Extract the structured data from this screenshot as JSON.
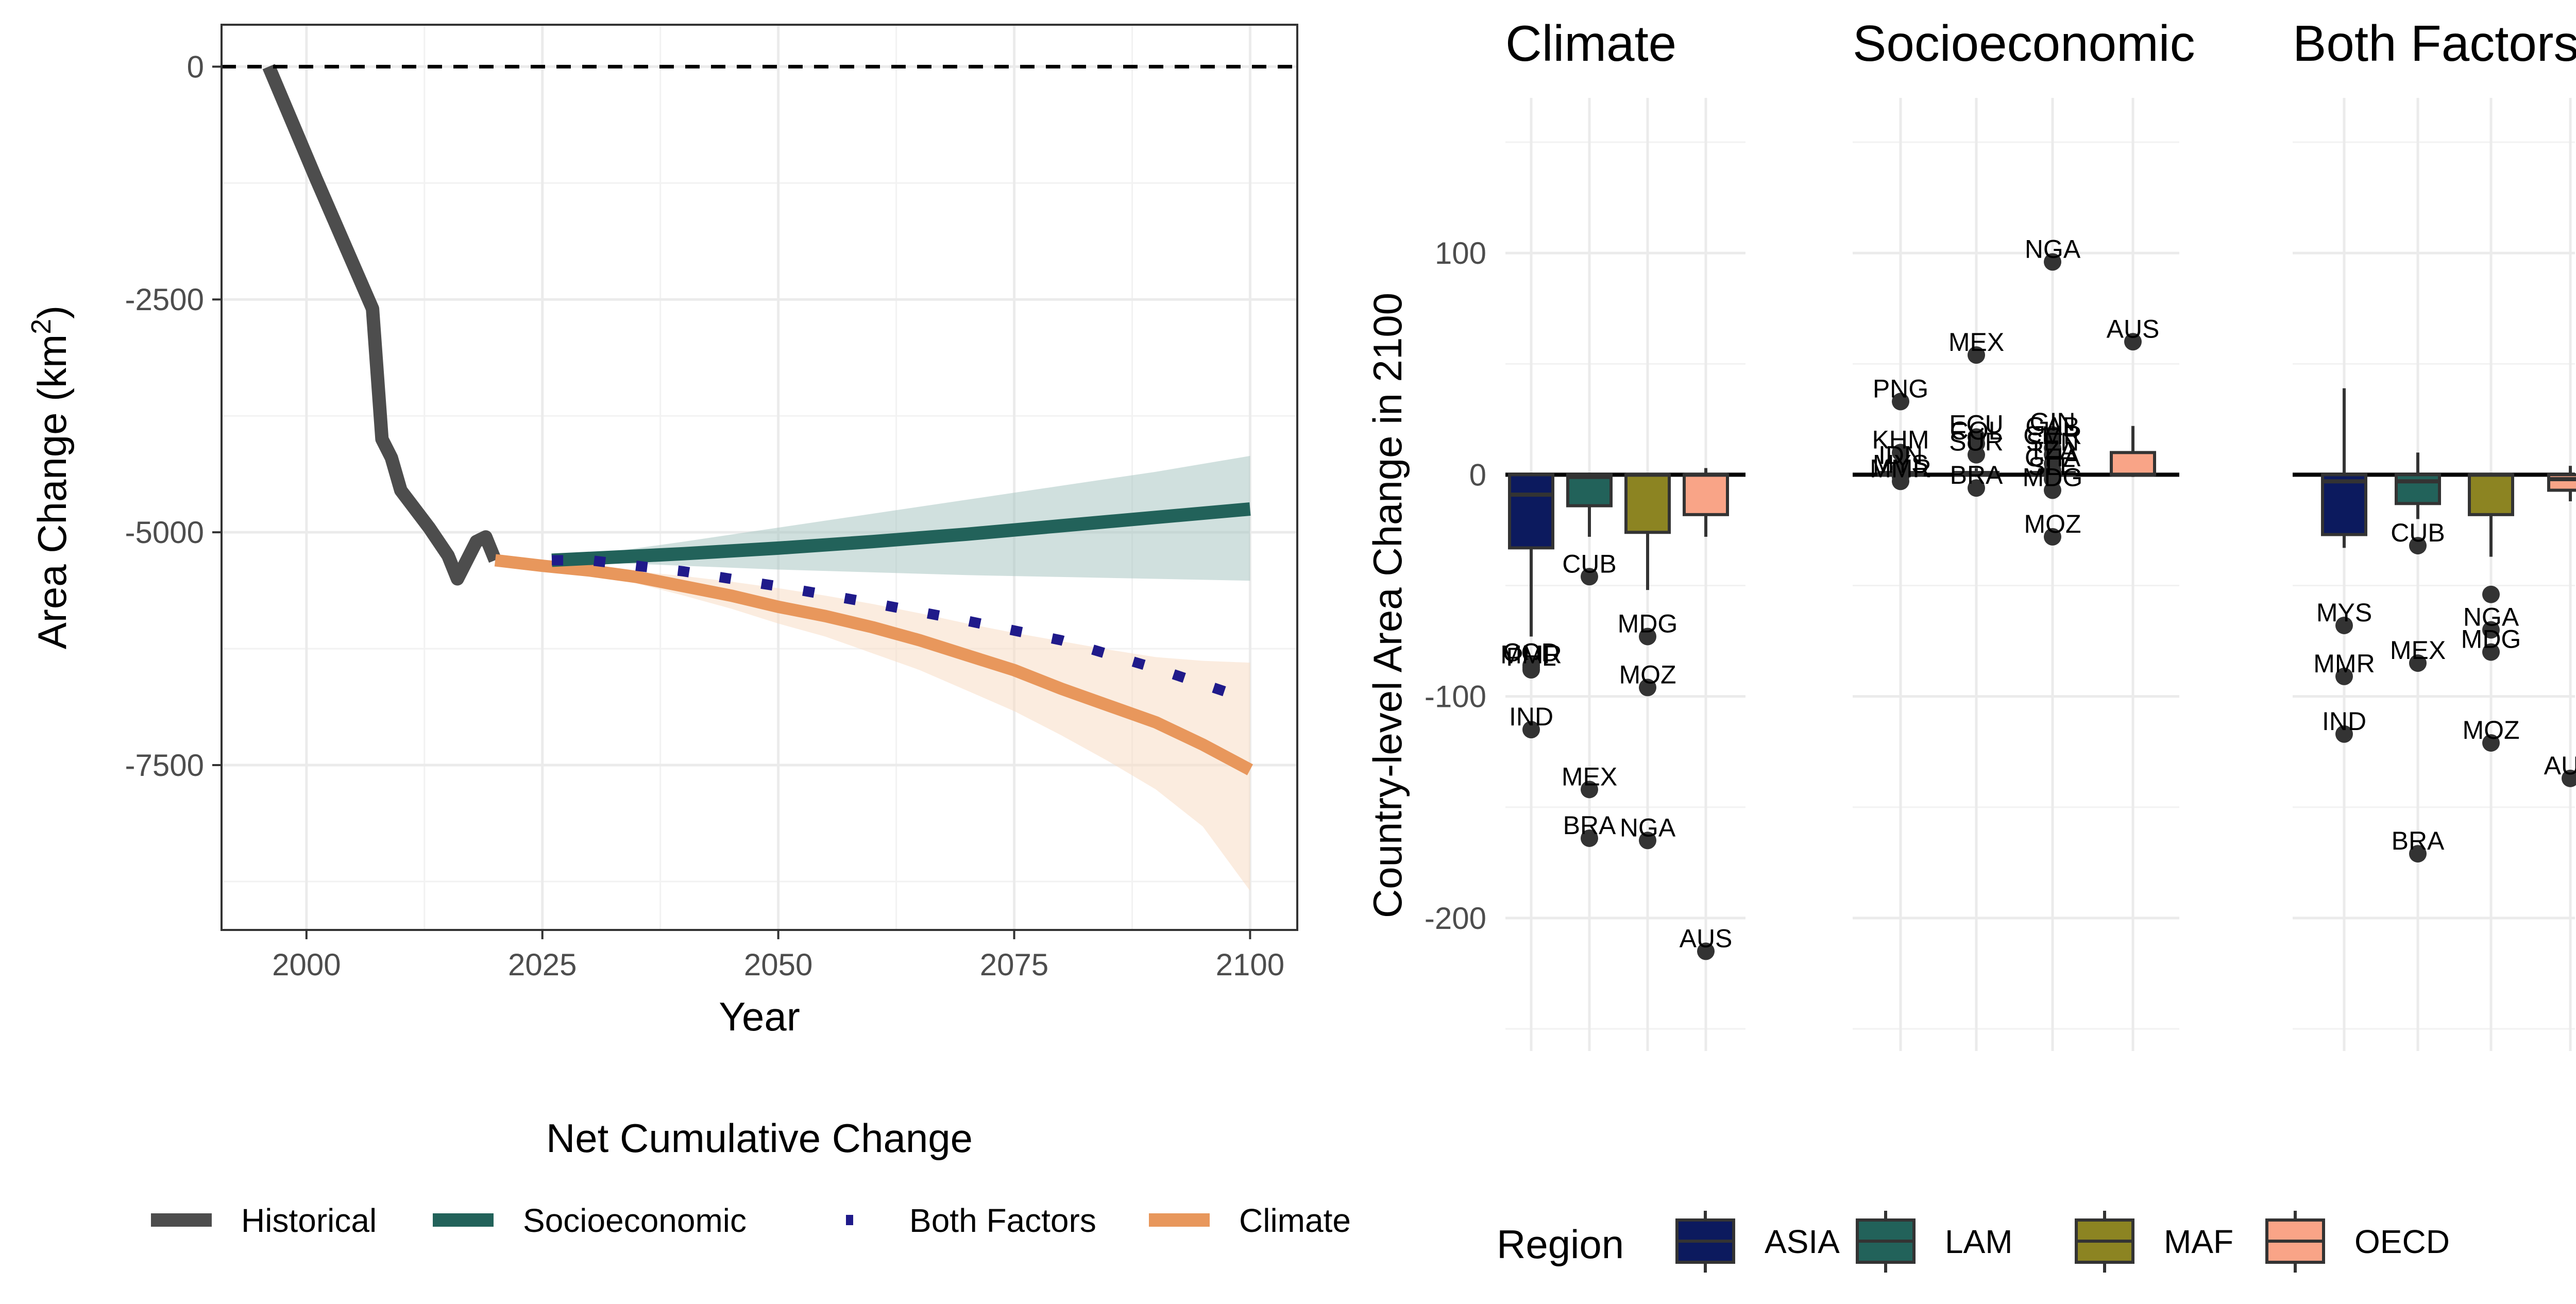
{
  "colors": {
    "historical": "#4d4d4d",
    "socioeconomic": "#22625a",
    "both": "#1f1a8a",
    "climate": "#e8975c",
    "socioeconomic_band": "#aac7c3",
    "climate_band": "#f8dcc5",
    "ASIA": "#0c1a5e",
    "LAM": "#22625a",
    "MAF": "#8c8422",
    "OECD": "#f9a487"
  },
  "chart_data": [
    {
      "type": "line",
      "xlabel": "Year",
      "ylabel_main": "Area Change (km",
      "ylabel_sup": "2",
      "ylabel_end": ")",
      "xlim": [
        1991,
        2105
      ],
      "ylim": [
        -9270,
        450
      ],
      "xticks": [
        2000,
        2025,
        2050,
        2075,
        2100
      ],
      "yticks": [
        0,
        -2500,
        -5000,
        -7500
      ],
      "ytick_labels": [
        "0",
        "-2500",
        "-5000",
        "-7500"
      ],
      "legend_title": "Net Cumulative Change",
      "series": [
        {
          "name": "Historical",
          "key": "historical",
          "x": [
            1996,
            2001,
            2004,
            2007,
            2008,
            2009,
            2010,
            2013,
            2015,
            2016,
            2017,
            2018,
            2019,
            2020
          ],
          "y": [
            0,
            -1200,
            -1900,
            -2600,
            -4000,
            -4200,
            -4550,
            -4950,
            -5250,
            -5500,
            -5300,
            -5100,
            -5050,
            -5300
          ]
        },
        {
          "name": "Socioeconomic",
          "key": "socioeconomic",
          "x": [
            2026,
            2040,
            2050,
            2060,
            2070,
            2080,
            2090,
            2100
          ],
          "y": [
            -5300,
            -5230,
            -5170,
            -5100,
            -5020,
            -4930,
            -4840,
            -4750
          ],
          "band_lower": [
            -5300,
            -5360,
            -5400,
            -5430,
            -5460,
            -5480,
            -5500,
            -5520
          ],
          "band_upper": [
            -5300,
            -5100,
            -4950,
            -4800,
            -4650,
            -4500,
            -4350,
            -4180
          ]
        },
        {
          "name": "Both Factors",
          "key": "both",
          "x": [
            2026,
            2030,
            2040,
            2050,
            2060,
            2070,
            2080,
            2090,
            2100
          ],
          "y": [
            -5300,
            -5300,
            -5420,
            -5580,
            -5760,
            -5950,
            -6160,
            -6460,
            -6800
          ]
        },
        {
          "name": "Climate",
          "key": "climate",
          "x": [
            2020,
            2025,
            2030,
            2035,
            2040,
            2045,
            2050,
            2055,
            2060,
            2065,
            2070,
            2075,
            2080,
            2085,
            2090,
            2095,
            2100
          ],
          "y": [
            -5300,
            -5360,
            -5410,
            -5480,
            -5580,
            -5680,
            -5800,
            -5900,
            -6020,
            -6160,
            -6320,
            -6480,
            -6680,
            -6860,
            -7040,
            -7280,
            -7550
          ],
          "band_lower": [
            -5300,
            -5370,
            -5450,
            -5550,
            -5680,
            -5820,
            -5980,
            -6120,
            -6300,
            -6480,
            -6700,
            -6920,
            -7180,
            -7460,
            -7760,
            -8160,
            -8850
          ],
          "band_upper": [
            -5300,
            -5350,
            -5390,
            -5420,
            -5470,
            -5530,
            -5600,
            -5680,
            -5770,
            -5870,
            -5980,
            -6080,
            -6170,
            -6260,
            -6340,
            -6380,
            -6400
          ]
        }
      ]
    },
    {
      "type": "box",
      "ylabel": "Country-level Area Change in 2100",
      "ylim": [
        -260,
        170
      ],
      "yticks": [
        100,
        0,
        -100,
        -200
      ],
      "ytick_labels": [
        "100",
        "0",
        "-100",
        "-200"
      ],
      "regions": [
        "ASIA",
        "LAM",
        "MAF",
        "OECD"
      ],
      "legend_title": "Region",
      "facets": [
        {
          "title": "Climate",
          "boxes": [
            {
              "region": "ASIA",
              "q1": -33,
              "median": -9,
              "q3": 0,
              "lo": -73,
              "hi": 0
            },
            {
              "region": "LAM",
              "q1": -14,
              "median": -1,
              "q3": 0,
              "lo": -28,
              "hi": 0
            },
            {
              "region": "MAF",
              "q1": -26,
              "median": 0,
              "q3": 0,
              "lo": -52,
              "hi": 0
            },
            {
              "region": "OECD",
              "q1": -18,
              "median": 0,
              "q3": 0,
              "lo": -28,
              "hi": 3
            }
          ],
          "points": [
            {
              "region": "ASIA",
              "value": -88,
              "label": "PHL"
            },
            {
              "region": "ASIA",
              "value": -86,
              "label": "COD"
            },
            {
              "region": "ASIA",
              "value": -87,
              "label": "MMR"
            },
            {
              "region": "ASIA",
              "value": -115,
              "label": "IND"
            },
            {
              "region": "LAM",
              "value": -46,
              "label": "CUB"
            },
            {
              "region": "LAM",
              "value": -142,
              "label": "MEX"
            },
            {
              "region": "LAM",
              "value": -164,
              "label": "BRA"
            },
            {
              "region": "MAF",
              "value": -73,
              "label": "MDG"
            },
            {
              "region": "MAF",
              "value": -96,
              "label": "MOZ"
            },
            {
              "region": "MAF",
              "value": -165,
              "label": "NGA"
            },
            {
              "region": "OECD",
              "value": -215,
              "label": "AUS"
            }
          ]
        },
        {
          "title": "Socioeconomic",
          "boxes": [
            {
              "region": "ASIA",
              "q1": 0,
              "median": 0,
              "q3": 1,
              "lo": -2,
              "hi": 2
            },
            {
              "region": "LAM",
              "q1": 0,
              "median": 0,
              "q3": 1,
              "lo": -1,
              "hi": 3
            },
            {
              "region": "MAF",
              "q1": 0,
              "median": 0,
              "q3": 1,
              "lo": -2,
              "hi": 3
            },
            {
              "region": "OECD",
              "q1": 0,
              "median": 0,
              "q3": 10,
              "lo": -1,
              "hi": 22
            }
          ],
          "points": [
            {
              "region": "ASIA",
              "value": 33,
              "label": "PNG"
            },
            {
              "region": "ASIA",
              "value": 10,
              "label": "KHM"
            },
            {
              "region": "ASIA",
              "value": 3,
              "label": "IDN"
            },
            {
              "region": "ASIA",
              "value": -1,
              "label": "MYS"
            },
            {
              "region": "ASIA",
              "value": -3,
              "label": "MMR"
            },
            {
              "region": "LAM",
              "value": 54,
              "label": "MEX"
            },
            {
              "region": "LAM",
              "value": 17,
              "label": "ECU"
            },
            {
              "region": "LAM",
              "value": 14,
              "label": "COL"
            },
            {
              "region": "LAM",
              "value": 9,
              "label": "SUR"
            },
            {
              "region": "LAM",
              "value": -6,
              "label": "BRA"
            },
            {
              "region": "MAF",
              "value": 96,
              "label": "NGA"
            },
            {
              "region": "MAF",
              "value": 18,
              "label": "GIN"
            },
            {
              "region": "MAF",
              "value": 16,
              "label": "GAB"
            },
            {
              "region": "MAF",
              "value": 12,
              "label": "CMR"
            },
            {
              "region": "MAF",
              "value": 9,
              "label": "SEN"
            },
            {
              "region": "MAF",
              "value": 5,
              "label": "TZA"
            },
            {
              "region": "MAF",
              "value": 2,
              "label": "GHA"
            },
            {
              "region": "MAF",
              "value": -2,
              "label": "SLE"
            },
            {
              "region": "MAF",
              "value": -7,
              "label": "MDG"
            },
            {
              "region": "MAF",
              "value": -28,
              "label": "MOZ"
            },
            {
              "region": "OECD",
              "value": 60,
              "label": "AUS"
            }
          ]
        },
        {
          "title": "Both Factors",
          "boxes": [
            {
              "region": "ASIA",
              "q1": -27,
              "median": -3,
              "q3": 0,
              "lo": -33,
              "hi": 39
            },
            {
              "region": "LAM",
              "q1": -13,
              "median": -3,
              "q3": 0,
              "lo": -20,
              "hi": 10
            },
            {
              "region": "MAF",
              "q1": -18,
              "median": 0,
              "q3": 0,
              "lo": -37,
              "hi": 0
            },
            {
              "region": "OECD",
              "q1": -7,
              "median": -2,
              "q3": 0,
              "lo": -12,
              "hi": 4
            }
          ],
          "points": [
            {
              "region": "ASIA",
              "value": -68,
              "label": "MYS"
            },
            {
              "region": "ASIA",
              "value": -91,
              "label": "MMR"
            },
            {
              "region": "ASIA",
              "value": -117,
              "label": "IND"
            },
            {
              "region": "LAM",
              "value": -32,
              "label": "CUB"
            },
            {
              "region": "LAM",
              "value": -85,
              "label": "MEX"
            },
            {
              "region": "LAM",
              "value": -171,
              "label": "BRA"
            },
            {
              "region": "MAF",
              "value": -54,
              "label": ""
            },
            {
              "region": "MAF",
              "value": -70,
              "label": "NGA"
            },
            {
              "region": "MAF",
              "value": -80,
              "label": "MDG"
            },
            {
              "region": "MAF",
              "value": -121,
              "label": "MOZ"
            },
            {
              "region": "OECD",
              "value": -137,
              "label": "AUS"
            }
          ]
        }
      ]
    }
  ]
}
